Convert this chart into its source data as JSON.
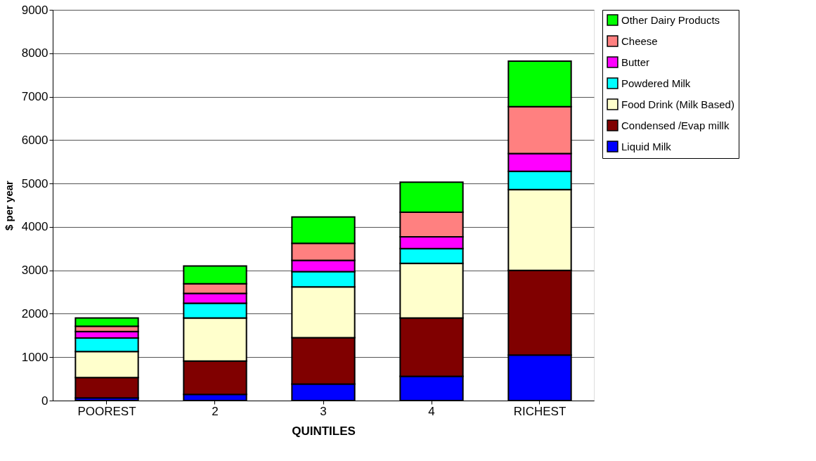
{
  "chart_data": {
    "type": "bar",
    "stacked": true,
    "xlabel": "QUINTILES",
    "ylabel": "$ per year",
    "categories": [
      "POOREST",
      "2",
      "3",
      "4",
      "RICHEST"
    ],
    "series": [
      {
        "name": "Liquid Milk",
        "color": "#0000ff",
        "values": [
          60,
          140,
          380,
          560,
          1050
        ]
      },
      {
        "name": "Condensed /Evap millk",
        "color": "#800000",
        "values": [
          470,
          770,
          1070,
          1340,
          1950
        ]
      },
      {
        "name": "Food Drink (Milk Based)",
        "color": "#ffffcc",
        "values": [
          600,
          990,
          1170,
          1260,
          1860
        ]
      },
      {
        "name": "Powdered Milk",
        "color": "#00ffff",
        "values": [
          310,
          340,
          350,
          340,
          420
        ]
      },
      {
        "name": "Butter",
        "color": "#ff00ff",
        "values": [
          150,
          230,
          260,
          270,
          410
        ]
      },
      {
        "name": "Cheese",
        "color": "#ff8080",
        "values": [
          120,
          220,
          390,
          570,
          1080
        ]
      },
      {
        "name": "Other Dairy Products",
        "color": "#00ff00",
        "values": [
          190,
          410,
          610,
          690,
          1050
        ]
      }
    ],
    "ylim": [
      0,
      9000
    ],
    "yticks": [
      0,
      1000,
      2000,
      3000,
      4000,
      5000,
      6000,
      7000,
      8000,
      9000
    ],
    "grid": "y",
    "legend": "right"
  }
}
